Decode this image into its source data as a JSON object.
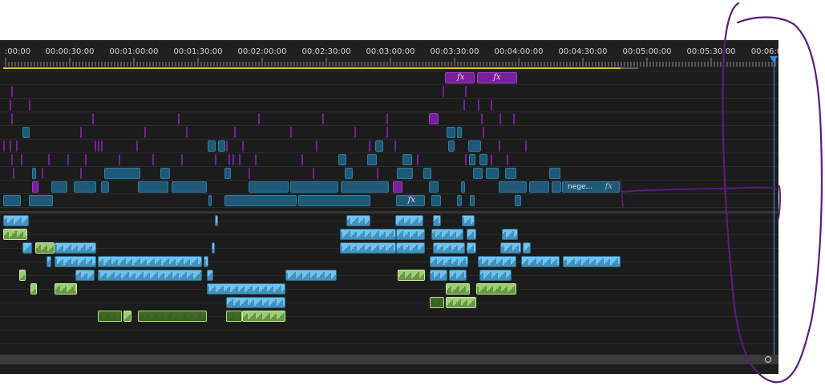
{
  "ruler": {
    "ticks": [
      {
        "label": ":00:00"
      },
      {
        "label": "00:00:30:00"
      },
      {
        "label": "00:01:00:00"
      },
      {
        "label": "00:01:30:00"
      },
      {
        "label": "00:02:00:00"
      },
      {
        "label": "00:02:30:00"
      },
      {
        "label": "00:03:00:00"
      },
      {
        "label": "00:03:30:00"
      },
      {
        "label": "00:04:00:00"
      },
      {
        "label": "00:04:30:00"
      },
      {
        "label": "00:05:00:00"
      },
      {
        "label": "00:05:30:00"
      },
      {
        "label": "00:06:0"
      }
    ]
  },
  "clips": {
    "fx_symbol": "fx",
    "named_clip_label": "nege...",
    "named_clip_fx": "fx",
    "fx_clip_label": "fx"
  },
  "colors": {
    "panel_bg": "#1c1c1c",
    "video_clip": "#1e5a78",
    "video_clip_border": "#2f7ea3",
    "audio_clip": "#6fc3ee",
    "audio_clip_dark": "#2b6e93",
    "audio_green": "#9ccf70",
    "adjust_purple": "#7a1f9c",
    "work_area": "#e8c229",
    "playhead": "#3a8ee0",
    "annotation_ink": "#5a1d7c"
  },
  "icons": {
    "playhead": "playhead-marker-icon",
    "scroll": "scroll-knob-icon"
  }
}
